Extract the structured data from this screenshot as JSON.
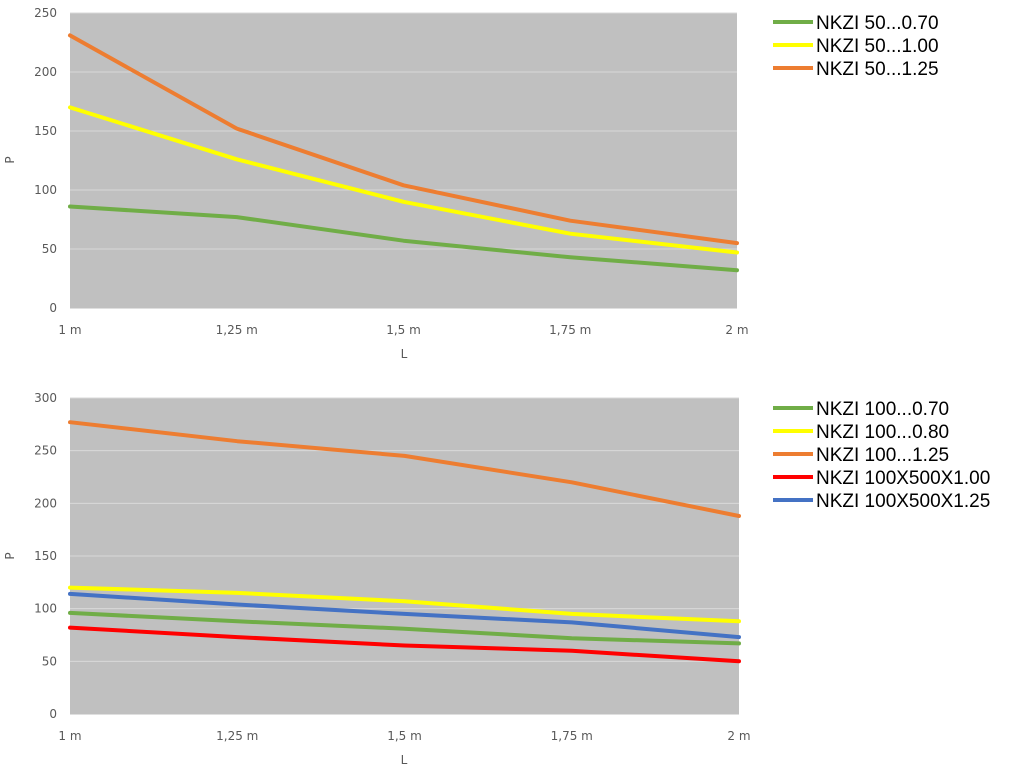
{
  "chart_data": [
    {
      "type": "line",
      "title": "",
      "xlabel": "L",
      "ylabel": "P",
      "categories": [
        "1 m",
        "1,25 m",
        "1,5 m",
        "1,75 m",
        "2 m"
      ],
      "ylim": [
        0,
        250
      ],
      "yticks": [
        0,
        50,
        100,
        150,
        200,
        250
      ],
      "grid": true,
      "plot_background": "#C0C0C0",
      "legend_position": "right",
      "series": [
        {
          "name": "NKZI 50...0.70",
          "color": "#70AD47",
          "values": [
            86,
            77,
            57,
            43,
            32
          ]
        },
        {
          "name": "NKZI 50...1.00",
          "color": "#FFFF00",
          "values": [
            170,
            126,
            90,
            63,
            47
          ]
        },
        {
          "name": "NKZI 50...1.25",
          "color": "#ED7D31",
          "values": [
            231,
            152,
            104,
            74,
            55
          ]
        }
      ]
    },
    {
      "type": "line",
      "title": "",
      "xlabel": "L",
      "ylabel": "P",
      "categories": [
        "1 m",
        "1,25 m",
        "1,5 m",
        "1,75 m",
        "2 m"
      ],
      "ylim": [
        0,
        300
      ],
      "yticks": [
        0,
        50,
        100,
        150,
        200,
        250,
        300
      ],
      "grid": true,
      "plot_background": "#C0C0C0",
      "legend_position": "right",
      "series": [
        {
          "name": "NKZI 100...0.70",
          "color": "#70AD47",
          "values": [
            96,
            88,
            81,
            72,
            67
          ]
        },
        {
          "name": "NKZI 100...0.80",
          "color": "#FFFF00",
          "values": [
            120,
            115,
            107,
            95,
            88
          ]
        },
        {
          "name": "NKZI 100...1.25",
          "color": "#ED7D31",
          "values": [
            277,
            259,
            245,
            220,
            188
          ]
        },
        {
          "name": "NKZI 100X500X1.00",
          "color": "#FF0000",
          "values": [
            82,
            73,
            65,
            60,
            50
          ]
        },
        {
          "name": "NKZI 100X500X1.25",
          "color": "#4472C4",
          "values": [
            114,
            104,
            95,
            87,
            73
          ]
        }
      ]
    }
  ]
}
